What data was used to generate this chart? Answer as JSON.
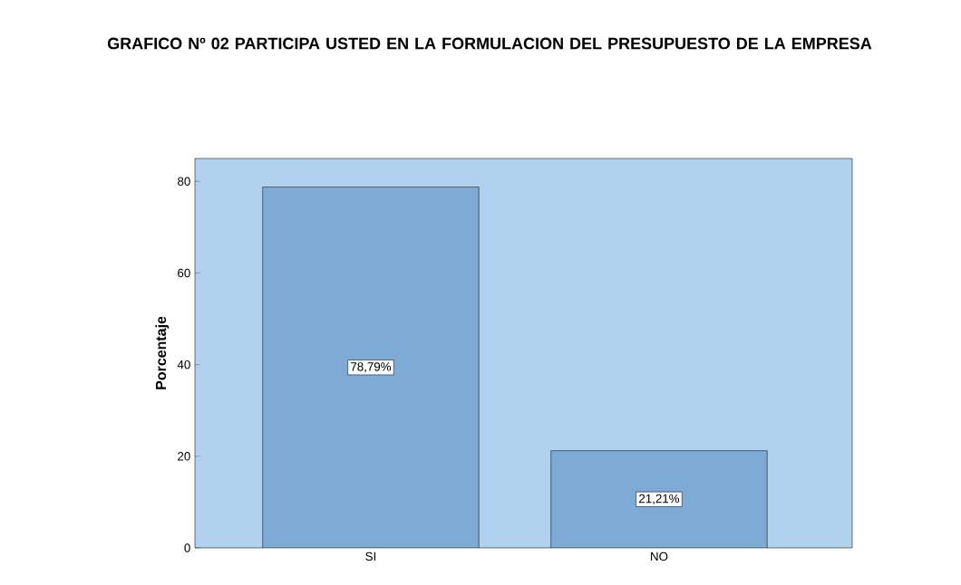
{
  "chart_data": {
    "type": "bar",
    "title": "GRAFICO Nº 02 PARTICIPA USTED EN LA FORMULACION DEL PRESUPUESTO DE LA EMPRESA",
    "ylabel": "Porcentaje",
    "categories": [
      "SI",
      "NO"
    ],
    "values": [
      78.79,
      21.21
    ],
    "value_labels": [
      "78,79%",
      "21,21%"
    ],
    "color": "#7eaad6",
    "ylim": [
      0,
      85
    ],
    "yticks": [
      0,
      20,
      40,
      60,
      80
    ],
    "grid": false
  }
}
